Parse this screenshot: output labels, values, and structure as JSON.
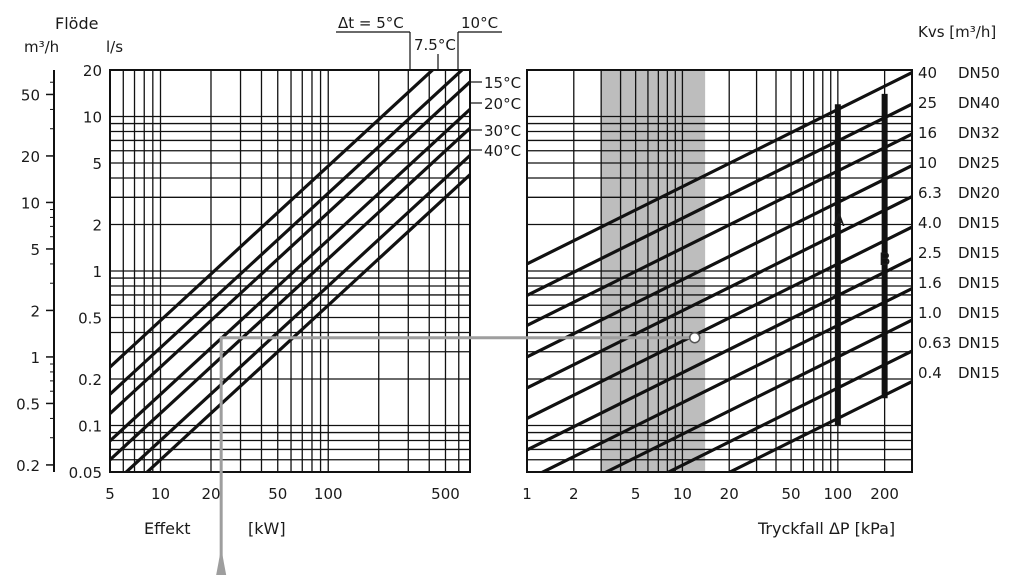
{
  "chart_data": [
    {
      "type": "line",
      "scale": "log-log",
      "xlabel": "Effekt",
      "xunit": "[kW]",
      "y_title": "Flöde",
      "y_units": [
        "m³/h",
        "l/s"
      ],
      "xlim": [
        5,
        700
      ],
      "ylim": [
        0.05,
        20
      ],
      "x_ticks": [
        5,
        10,
        20,
        50,
        100,
        500
      ],
      "y_ticks_ls": [
        0.05,
        0.1,
        0.2,
        0.5,
        1,
        2,
        5,
        10,
        20
      ],
      "y_ticks_m3h": [
        0.2,
        0.5,
        1,
        2,
        5,
        10,
        20,
        50
      ],
      "grid": true,
      "series": [
        {
          "name": "Δt = 5°C",
          "k": 0.0478
        },
        {
          "name": "7.5°C",
          "k": 0.0319
        },
        {
          "name": "10°C",
          "k": 0.0239
        },
        {
          "name": "15°C",
          "k": 0.0159
        },
        {
          "name": "20°C",
          "k": 0.012
        },
        {
          "name": "30°C",
          "k": 0.008
        },
        {
          "name": "40°C",
          "k": 0.006
        }
      ],
      "annotations": {
        "dt_label": "Δt = 5°C",
        "dt2": "7.5°C",
        "dt3": "10°C",
        "dt4": "15°C",
        "dt5": "20°C",
        "dt6": "30°C",
        "dt7": "40°C"
      }
    },
    {
      "type": "line",
      "scale": "log-log",
      "xlabel": "Tryckfall ΔP [kPa]",
      "y_title": "Kvs [m³/h]",
      "xlim": [
        1,
        300
      ],
      "ylim": [
        0.05,
        20
      ],
      "x_ticks": [
        1,
        2,
        5,
        10,
        20,
        50,
        100,
        200
      ],
      "grid": true,
      "shaded_range": [
        3,
        14
      ],
      "valves": [
        {
          "kvs": "40",
          "dn": "DN50",
          "value": 40
        },
        {
          "kvs": "25",
          "dn": "DN40",
          "value": 25
        },
        {
          "kvs": "16",
          "dn": "DN32",
          "value": 16
        },
        {
          "kvs": "10",
          "dn": "DN25",
          "value": 10
        },
        {
          "kvs": "6.3",
          "dn": "DN20",
          "value": 6.3
        },
        {
          "kvs": "4.0",
          "dn": "DN15",
          "value": 4.0
        },
        {
          "kvs": "2.5",
          "dn": "DN15",
          "value": 2.5
        },
        {
          "kvs": "1.6",
          "dn": "DN15",
          "value": 1.6
        },
        {
          "kvs": "1.0",
          "dn": "DN15",
          "value": 1.0
        },
        {
          "kvs": "0.63",
          "dn": "DN15",
          "value": 0.63
        },
        {
          "kvs": "0.4",
          "dn": "DN15",
          "value": 0.4
        }
      ],
      "markers": [
        {
          "label": "A",
          "x": 100,
          "y_range": [
            0.1,
            12
          ]
        },
        {
          "label": "B",
          "x": 200,
          "y_range": [
            0.15,
            14
          ]
        }
      ]
    }
  ],
  "example": {
    "power_kw": 23,
    "flow_ls": 0.37,
    "pressure_kpa": 12
  }
}
